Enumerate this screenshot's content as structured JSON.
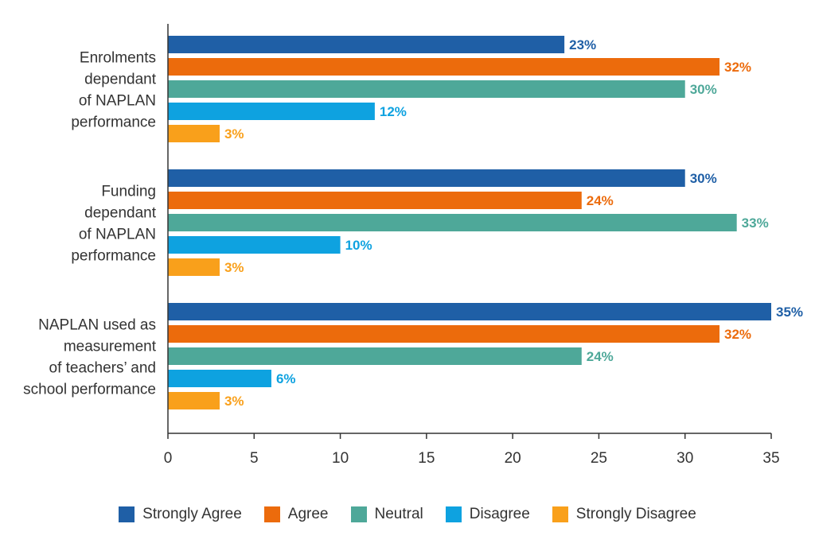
{
  "chart_data": {
    "type": "bar",
    "orientation": "horizontal",
    "categories": [
      [
        "Enrolments",
        "dependant",
        "of NAPLAN",
        "performance"
      ],
      [
        "Funding",
        "dependant",
        "of NAPLAN",
        "performance"
      ],
      [
        "NAPLAN used as",
        "measurement",
        "of teachers’ and",
        "school performance"
      ]
    ],
    "series": [
      {
        "name": "Strongly Agree",
        "color": "#1f5fa6",
        "values": [
          23,
          30,
          35
        ],
        "labels": [
          "23%",
          "30%",
          "35%"
        ]
      },
      {
        "name": "Agree",
        "color": "#ec6b0c",
        "values": [
          32,
          24,
          32
        ],
        "labels": [
          "32%",
          "24%",
          "32%"
        ]
      },
      {
        "name": "Neutral",
        "color": "#4ea899",
        "values": [
          30,
          33,
          24
        ],
        "labels": [
          "30%",
          "33%",
          "24%"
        ]
      },
      {
        "name": "Disagree",
        "color": "#0ea2e0",
        "values": [
          12,
          10,
          6
        ],
        "labels": [
          "12%",
          "10%",
          "6%"
        ]
      },
      {
        "name": "Strongly Disagree",
        "color": "#f9a01b",
        "values": [
          3,
          3,
          3
        ],
        "labels": [
          "3%",
          "3%",
          "3%"
        ]
      }
    ],
    "xlim": [
      0,
      35
    ],
    "xticks": [
      "0",
      "5",
      "10",
      "15",
      "20",
      "25",
      "30",
      "35"
    ],
    "xlabel": "",
    "ylabel": "",
    "title": "",
    "grid": false,
    "legend_position": "bottom"
  }
}
